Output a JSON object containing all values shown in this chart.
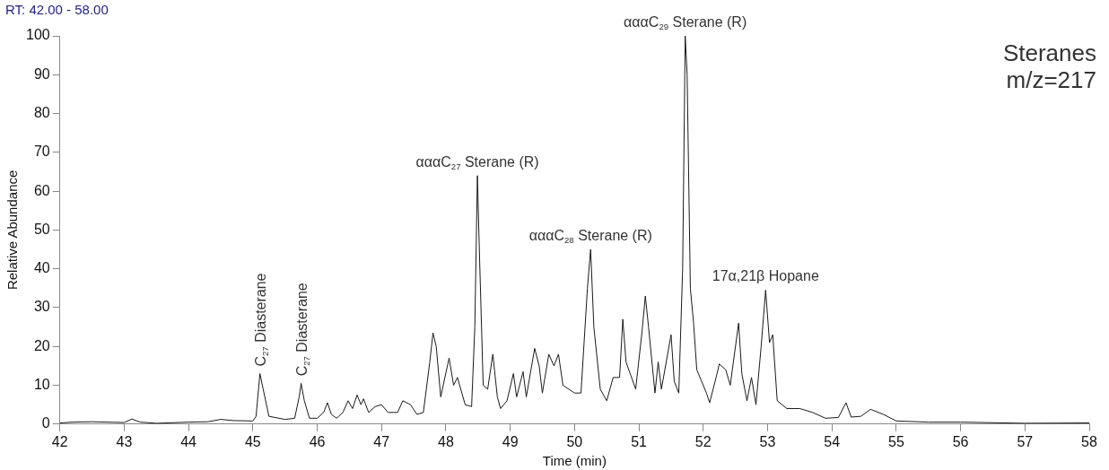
{
  "chart_data": {
    "type": "line",
    "xlabel": "Time (min)",
    "ylabel": "Relative Abundance",
    "color": "#1a1a1a",
    "grid": false,
    "marker": "none",
    "line_style": "solid",
    "xlim": [
      42,
      58
    ],
    "xticks": [
      42,
      43,
      44,
      45,
      46,
      47,
      48,
      49,
      50,
      51,
      52,
      53,
      54,
      55,
      56,
      57,
      58
    ],
    "ylim": [
      0,
      100
    ],
    "yticks": [
      0,
      10,
      20,
      30,
      40,
      50,
      60,
      70,
      80,
      90,
      100
    ],
    "x": [
      42,
      42.2,
      42.5,
      43,
      43.12,
      43.25,
      43.5,
      44,
      44.3,
      44.5,
      44.7,
      45,
      45.05,
      45.11,
      45.16,
      45.25,
      45.5,
      45.65,
      45.72,
      45.75,
      45.8,
      45.88,
      46,
      46.1,
      46.16,
      46.22,
      46.3,
      46.4,
      46.48,
      46.55,
      46.62,
      46.68,
      46.72,
      46.8,
      46.9,
      47,
      47.1,
      47.25,
      47.33,
      47.45,
      47.55,
      47.65,
      47.75,
      47.8,
      47.85,
      47.92,
      48.05,
      48.12,
      48.18,
      48.3,
      48.4,
      48.45,
      48.49,
      48.52,
      48.58,
      48.65,
      48.73,
      48.8,
      48.85,
      48.95,
      49.05,
      49.1,
      49.2,
      49.25,
      49.38,
      49.45,
      49.5,
      49.6,
      49.68,
      49.75,
      49.82,
      50,
      50.1,
      50.2,
      50.25,
      50.3,
      50.4,
      50.5,
      50.6,
      50.7,
      50.75,
      50.8,
      50.95,
      51.05,
      51.1,
      51.15,
      51.25,
      51.3,
      51.35,
      51.5,
      51.55,
      51.62,
      51.68,
      51.72,
      51.75,
      51.8,
      51.85,
      51.9,
      52.05,
      52.1,
      52.2,
      52.25,
      52.35,
      52.42,
      52.55,
      52.6,
      52.68,
      52.75,
      52.82,
      52.9,
      52.97,
      53.03,
      53.08,
      53.15,
      53.3,
      53.5,
      53.7,
      53.9,
      54.1,
      54.22,
      54.3,
      54.45,
      54.6,
      54.8,
      55,
      55.5,
      56,
      57,
      58
    ],
    "values": [
      0.3,
      0.5,
      0.6,
      0.4,
      1.3,
      0.5,
      0.2,
      0.5,
      0.6,
      1.2,
      0.9,
      0.8,
      2,
      13,
      9,
      2,
      1.2,
      1.5,
      7,
      10.5,
      6,
      1.5,
      1.5,
      3,
      5.5,
      2.5,
      1.5,
      3,
      6,
      4,
      7.5,
      5,
      6.5,
      3,
      4.5,
      5,
      3,
      3,
      6,
      5,
      2.5,
      3,
      16,
      23.5,
      20,
      7,
      17,
      10,
      12,
      5,
      4.5,
      25,
      64,
      45,
      10,
      9,
      18,
      7,
      4,
      6,
      13,
      7,
      13.5,
      7,
      19.5,
      15,
      8,
      18,
      15,
      18,
      10,
      8,
      8,
      35,
      45,
      25,
      9,
      6,
      12,
      12,
      27,
      16,
      9,
      24,
      33,
      25,
      8,
      16,
      9,
      23,
      11,
      8,
      40,
      100,
      90,
      35,
      26,
      14,
      8,
      5.5,
      12,
      15.5,
      14,
      10,
      26,
      13,
      6,
      12,
      5,
      20,
      34.5,
      21,
      23,
      6,
      4,
      4,
      3,
      1.5,
      1.7,
      5.5,
      1.8,
      2,
      3.8,
      2.5,
      0.8,
      0.5,
      0.5,
      0.2,
      0.3
    ],
    "annotations": [
      "RT: 42.00 - 58.00",
      "Steranes\nm/z=217",
      {
        "text": "C$_{27}$ Diasterane",
        "x": 45.11,
        "y": 13
      },
      {
        "text": "C$_{27}$ Diasterane",
        "x": 45.75,
        "y": 10.5
      },
      {
        "text": "αααC$_{27}$ Sterane (R)",
        "x": 48.49,
        "y": 64
      },
      {
        "text": "αααC$_{28}$ Sterane (R)",
        "x": 50.25,
        "y": 45
      },
      {
        "text": "αααC$_{29}$ Sterane (R)",
        "x": 51.72,
        "y": 100
      },
      {
        "text": "17α,21β Hopane",
        "x": 52.97,
        "y": 34.5
      }
    ]
  }
}
